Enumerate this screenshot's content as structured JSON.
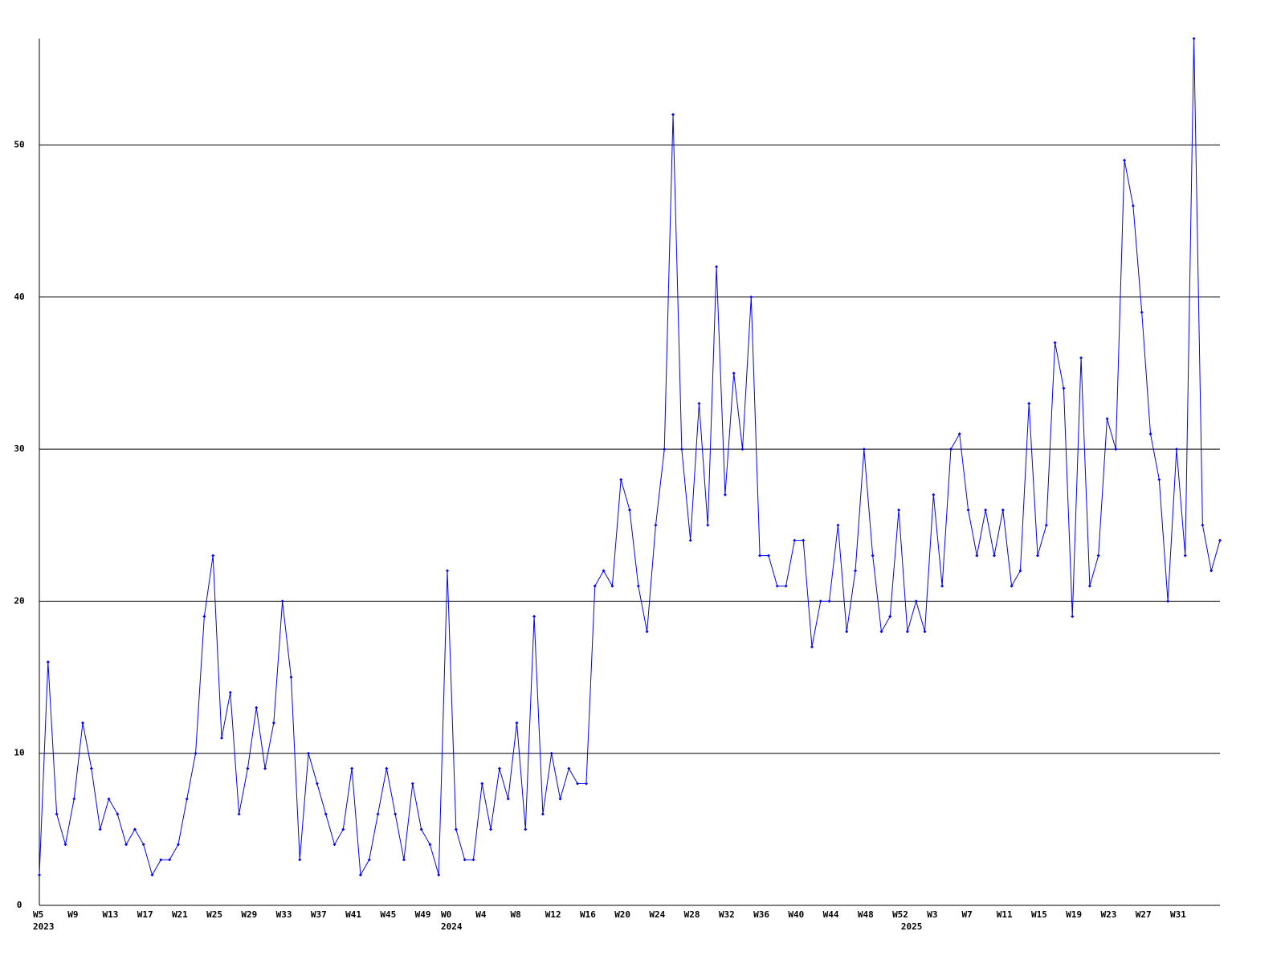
{
  "chart_data": {
    "type": "line",
    "categories": [
      "W5",
      null,
      null,
      null,
      "W9",
      null,
      null,
      null,
      "W13",
      null,
      null,
      null,
      "W17",
      null,
      null,
      null,
      "W21",
      null,
      null,
      null,
      "W25",
      null,
      null,
      null,
      "W29",
      null,
      null,
      null,
      "W33",
      null,
      null,
      null,
      "W37",
      null,
      null,
      null,
      "W41",
      null,
      null,
      null,
      "W45",
      null,
      null,
      null,
      "W49",
      null,
      null,
      "W0",
      null,
      null,
      null,
      "W4",
      null,
      null,
      null,
      "W8",
      null,
      null,
      null,
      "W12",
      null,
      null,
      null,
      "W16",
      null,
      null,
      null,
      "W20",
      null,
      null,
      null,
      "W24",
      null,
      null,
      null,
      "W28",
      null,
      null,
      null,
      "W32",
      null,
      null,
      null,
      "W36",
      null,
      null,
      null,
      "W40",
      null,
      null,
      null,
      "W44",
      null,
      null,
      null,
      "W48",
      null,
      null,
      null,
      "W52",
      null,
      null,
      null,
      "W3",
      null,
      null,
      null,
      "W7",
      null,
      null,
      null,
      "W11",
      null,
      null,
      null,
      "W15",
      null,
      null,
      null,
      "W19",
      null,
      null,
      null,
      "W23",
      null,
      null,
      null,
      "W27",
      null,
      null,
      null,
      "W31",
      null,
      null,
      null,
      null,
      null
    ],
    "year_labels": [
      {
        "label": "2023",
        "index": 0
      },
      {
        "label": "2024",
        "index": 47
      },
      {
        "label": "2025",
        "index": 100
      }
    ],
    "series": [
      {
        "color": "#0000ff",
        "values": [
          2,
          16,
          6,
          4,
          7,
          12,
          9,
          5,
          7,
          6,
          4,
          5,
          4,
          2,
          3,
          3,
          4,
          7,
          10,
          19,
          23,
          11,
          14,
          6,
          9,
          13,
          9,
          12,
          20,
          15,
          3,
          10,
          8,
          6,
          4,
          5,
          9,
          2,
          3,
          6,
          9,
          6,
          3,
          8,
          5,
          4,
          2,
          22,
          5,
          3,
          3,
          8,
          5,
          9,
          7,
          12,
          5,
          19,
          6,
          10,
          7,
          9,
          8,
          8,
          21,
          22,
          21,
          28,
          26,
          21,
          18,
          25,
          30,
          52,
          30,
          24,
          33,
          25,
          42,
          27,
          35,
          30,
          40,
          23,
          23,
          21,
          21,
          24,
          24,
          17,
          20,
          20,
          25,
          18,
          22,
          30,
          23,
          18,
          19,
          26,
          18,
          20,
          18,
          27,
          21,
          30,
          31,
          26,
          23,
          26,
          23,
          26,
          21,
          22,
          33,
          23,
          25,
          37,
          34,
          19,
          36,
          21,
          23,
          32,
          30,
          49,
          46,
          39,
          31,
          28,
          20,
          30,
          23,
          57,
          25,
          22,
          24
        ]
      }
    ],
    "ylim": [
      0,
      57
    ],
    "yticks": [
      0,
      10,
      20,
      30,
      40,
      50
    ],
    "grid": true
  }
}
